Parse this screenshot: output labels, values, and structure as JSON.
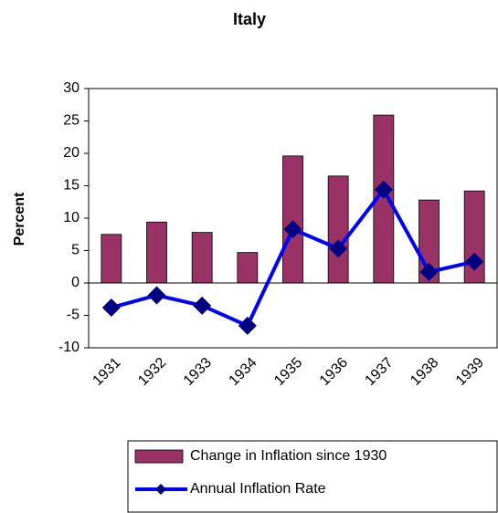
{
  "chart_data": {
    "type": "bar-line",
    "title": "Italy",
    "y_label": "Percent",
    "categories": [
      "1931",
      "1932",
      "1933",
      "1934",
      "1935",
      "1936",
      "1937",
      "1938",
      "1939"
    ],
    "series": [
      {
        "name": "Change in Inflation since 1930",
        "type": "bar",
        "color": "#993366",
        "values": [
          7.5,
          9.4,
          7.8,
          4.7,
          19.6,
          16.5,
          25.9,
          12.8,
          14.2
        ]
      },
      {
        "name": "Annual Inflation Rate",
        "type": "line",
        "color": "#0000ff",
        "marker_color": "#000080",
        "values": [
          -3.8,
          -1.9,
          -3.5,
          -6.6,
          8.3,
          5.3,
          14.4,
          1.7,
          3.3
        ]
      }
    ],
    "ylim": [
      -10,
      30
    ],
    "yticks": [
      -10,
      -5,
      0,
      5,
      10,
      15,
      20,
      25,
      30
    ],
    "grid": false
  }
}
